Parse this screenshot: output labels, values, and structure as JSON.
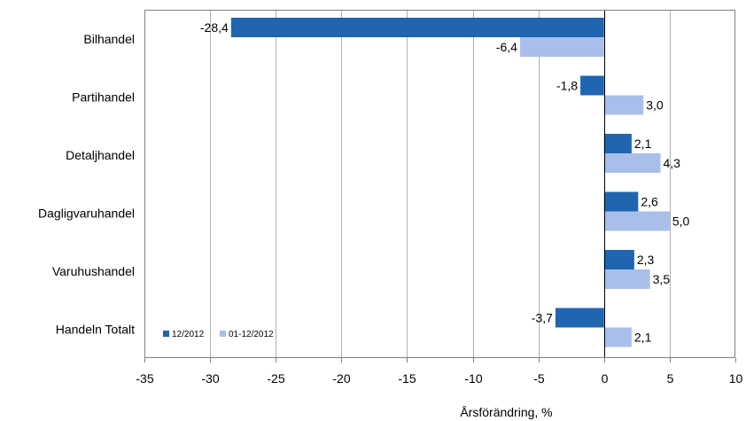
{
  "chart_data": {
    "type": "bar",
    "orientation": "horizontal",
    "categories": [
      "Bilhandel",
      "Partihandel",
      "Detaljhandel",
      "Dagligvaruhandel",
      "Varuhushandel",
      "Handeln Totalt"
    ],
    "series": [
      {
        "name": "12/2012",
        "color": "#1f65b0",
        "values": [
          -28.4,
          -1.8,
          2.1,
          2.6,
          2.3,
          -3.7
        ],
        "labels": [
          "-28,4",
          "-1,8",
          "2,1",
          "2,6",
          "2,3",
          "-3,7"
        ]
      },
      {
        "name": "01-12/2012",
        "color": "#a9bfe9",
        "values": [
          -6.4,
          3.0,
          4.3,
          5.0,
          3.5,
          2.1
        ],
        "labels": [
          "-6,4",
          "3,0",
          "4,3",
          "5,0",
          "3,5",
          "2,1"
        ]
      }
    ],
    "xlim": [
      -35,
      10
    ],
    "xticks": [
      -35,
      -30,
      -25,
      -20,
      -15,
      -10,
      -5,
      0,
      5,
      10
    ],
    "xtick_labels": [
      "-35",
      "-30",
      "-25",
      "-20",
      "-15",
      "-10",
      "-5",
      "0",
      "5",
      "10"
    ],
    "xlabel": "Årsförändring, %",
    "grid": "vertical",
    "legend_position": "bottom-left inside plot"
  }
}
